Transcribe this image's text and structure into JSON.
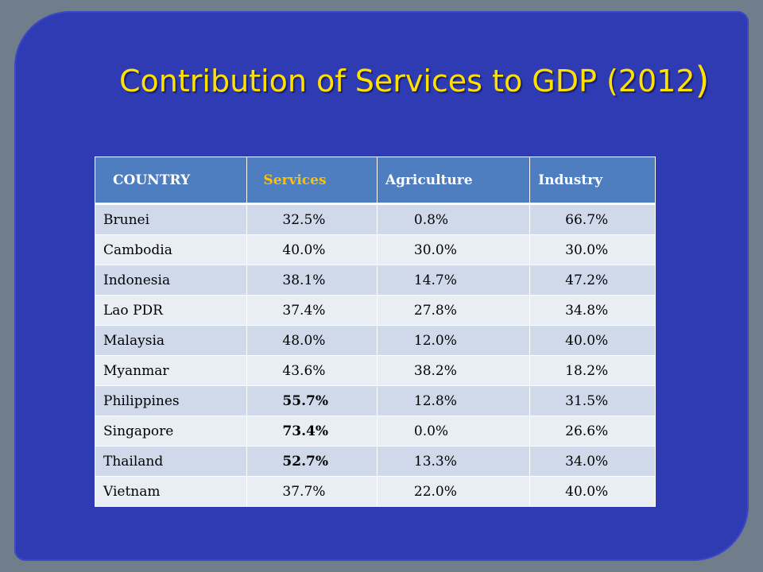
{
  "slide": {
    "title": "Contribution of Services to GDP (2012",
    "title_paren": ")"
  },
  "table": {
    "headers": [
      "COUNTRY",
      "Services",
      "Agriculture",
      "Industry"
    ],
    "rows": [
      {
        "country": "Brunei",
        "services": "32.5%",
        "agriculture": "0.8%",
        "industry": "66.7%",
        "services_bold": false
      },
      {
        "country": "Cambodia",
        "services": "40.0%",
        "agriculture": "30.0%",
        "industry": "30.0%",
        "services_bold": false
      },
      {
        "country": "Indonesia",
        "services": "38.1%",
        "agriculture": "14.7%",
        "industry": "47.2%",
        "services_bold": false
      },
      {
        "country": "Lao PDR",
        "services": "37.4%",
        "agriculture": "27.8%",
        "industry": "34.8%",
        "services_bold": false
      },
      {
        "country": "Malaysia",
        "services": "48.0%",
        "agriculture": "12.0%",
        "industry": "40.0%",
        "services_bold": false
      },
      {
        "country": "Myanmar",
        "services": "43.6%",
        "agriculture": "38.2%",
        "industry": "18.2%",
        "services_bold": false
      },
      {
        "country": "Philippines",
        "services": "55.7%",
        "agriculture": "12.8%",
        "industry": "31.5%",
        "services_bold": true
      },
      {
        "country": "Singapore",
        "services": "73.4%",
        "agriculture": "0.0%",
        "industry": "26.6%",
        "services_bold": true
      },
      {
        "country": "Thailand",
        "services": "52.7%",
        "agriculture": "13.3%",
        "industry": "34.0%",
        "services_bold": true
      },
      {
        "country": "Vietnam",
        "services": "37.7%",
        "agriculture": "22.0%",
        "industry": "40.0%",
        "services_bold": false
      }
    ]
  },
  "colors": {
    "background": "#2e3bb3",
    "title": "#ffe100",
    "header_fill": "#4e7dc0",
    "services_header": "#ffc000"
  }
}
